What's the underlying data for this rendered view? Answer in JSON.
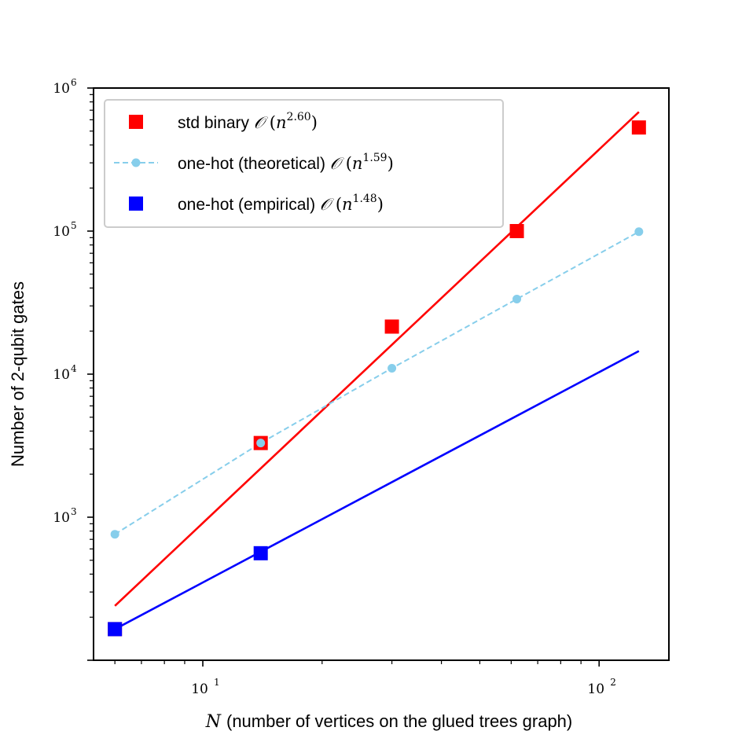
{
  "chart_data": {
    "type": "scatter",
    "xscale": "log",
    "yscale": "log",
    "xlim": [
      5.3,
      150
    ],
    "ylim": [
      100,
      1000000
    ],
    "xlabel_symbol": "N",
    "xlabel": "(number of vertices on the glued trees graph)",
    "ylabel": "Number of 2-qubit gates",
    "x_ticks": [
      {
        "value": 10,
        "base": "10",
        "exp": "1"
      },
      {
        "value": 100,
        "base": "10",
        "exp": "2"
      }
    ],
    "y_ticks": [
      {
        "value": 1000,
        "base": "10",
        "exp": "3"
      },
      {
        "value": 10000,
        "base": "10",
        "exp": "4"
      },
      {
        "value": 100000,
        "base": "10",
        "exp": "5"
      },
      {
        "value": 1000000,
        "base": "10",
        "exp": "6"
      }
    ],
    "legend_position": "top-left",
    "series": [
      {
        "name": "std binary",
        "exponent": "2.60",
        "color": "#ff0000",
        "marker": "square",
        "x": [
          6,
          14,
          30,
          62,
          126
        ],
        "y": [
          165,
          3300,
          21500,
          100000,
          530000
        ],
        "fit": {
          "x": [
            6,
            126
          ],
          "y": [
            240,
            680000
          ],
          "style": "solid"
        }
      },
      {
        "name": "one-hot (theoretical)",
        "exponent": "1.59",
        "color": "#87ceeb",
        "marker": "circle",
        "line": "dashed",
        "x": [
          6,
          14,
          30,
          62,
          126
        ],
        "y": [
          760,
          3300,
          11000,
          33500,
          99000
        ]
      },
      {
        "name": "one-hot (empirical)",
        "exponent": "1.48",
        "color": "#0000ff",
        "marker": "square",
        "x": [
          6,
          14
        ],
        "y": [
          165,
          560
        ],
        "fit": {
          "x": [
            6,
            126
          ],
          "y": [
            165,
            14500
          ],
          "style": "solid"
        }
      }
    ]
  }
}
